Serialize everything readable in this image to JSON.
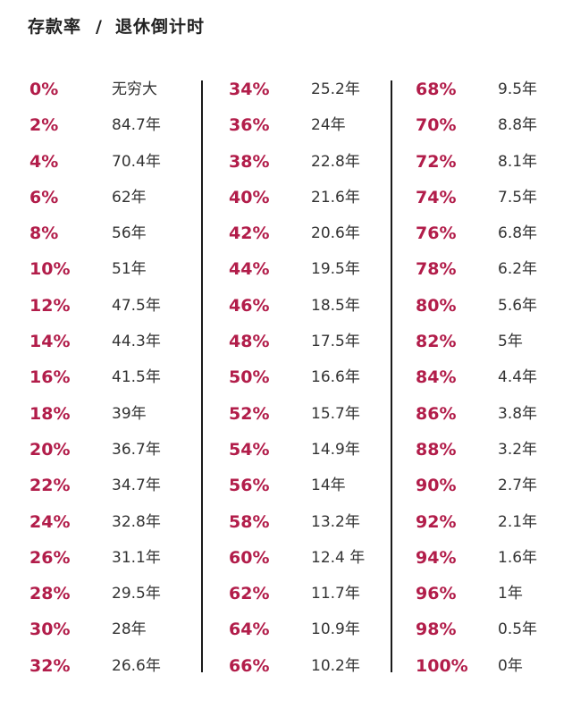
{
  "header": {
    "label_rate": "存款率",
    "separator": "/",
    "label_countdown": "退休倒计时"
  },
  "colors": {
    "rate": "#b21d4a",
    "years": "#333333",
    "title": "#222222"
  },
  "table": {
    "columns": [
      {
        "rows": [
          {
            "rate": "0%",
            "years": "无穷大"
          },
          {
            "rate": "2%",
            "years": "84.7年"
          },
          {
            "rate": "4%",
            "years": "70.4年"
          },
          {
            "rate": "6%",
            "years": "62年"
          },
          {
            "rate": "8%",
            "years": "56年"
          },
          {
            "rate": "10%",
            "years": "51年"
          },
          {
            "rate": "12%",
            "years": "47.5年"
          },
          {
            "rate": "14%",
            "years": "44.3年"
          },
          {
            "rate": "16%",
            "years": "41.5年"
          },
          {
            "rate": "18%",
            "years": "39年"
          },
          {
            "rate": "20%",
            "years": "36.7年"
          },
          {
            "rate": "22%",
            "years": "34.7年"
          },
          {
            "rate": "24%",
            "years": "32.8年"
          },
          {
            "rate": "26%",
            "years": "31.1年"
          },
          {
            "rate": "28%",
            "years": "29.5年"
          },
          {
            "rate": "30%",
            "years": "28年"
          },
          {
            "rate": "32%",
            "years": "26.6年"
          }
        ]
      },
      {
        "rows": [
          {
            "rate": "34%",
            "years": "25.2年"
          },
          {
            "rate": "36%",
            "years": "24年"
          },
          {
            "rate": "38%",
            "years": "22.8年"
          },
          {
            "rate": "40%",
            "years": "21.6年"
          },
          {
            "rate": "42%",
            "years": "20.6年"
          },
          {
            "rate": "44%",
            "years": "19.5年"
          },
          {
            "rate": "46%",
            "years": "18.5年"
          },
          {
            "rate": "48%",
            "years": "17.5年"
          },
          {
            "rate": "50%",
            "years": "16.6年"
          },
          {
            "rate": "52%",
            "years": "15.7年"
          },
          {
            "rate": "54%",
            "years": "14.9年"
          },
          {
            "rate": "56%",
            "years": "14年"
          },
          {
            "rate": "58%",
            "years": "13.2年"
          },
          {
            "rate": "60%",
            "years": "12.4 年"
          },
          {
            "rate": "62%",
            "years": "11.7年"
          },
          {
            "rate": "64%",
            "years": "10.9年"
          },
          {
            "rate": "66%",
            "years": "10.2年"
          }
        ]
      },
      {
        "rows": [
          {
            "rate": "68%",
            "years": "9.5年"
          },
          {
            "rate": "70%",
            "years": "8.8年"
          },
          {
            "rate": "72%",
            "years": "8.1年"
          },
          {
            "rate": "74%",
            "years": "7.5年"
          },
          {
            "rate": "76%",
            "years": "6.8年"
          },
          {
            "rate": "78%",
            "years": "6.2年"
          },
          {
            "rate": "80%",
            "years": "5.6年"
          },
          {
            "rate": "82%",
            "years": "5年"
          },
          {
            "rate": "84%",
            "years": "4.4年"
          },
          {
            "rate": "86%",
            "years": "3.8年"
          },
          {
            "rate": "88%",
            "years": "3.2年"
          },
          {
            "rate": "90%",
            "years": "2.7年"
          },
          {
            "rate": "92%",
            "years": "2.1年"
          },
          {
            "rate": "94%",
            "years": "1.6年"
          },
          {
            "rate": "96%",
            "years": "1年"
          },
          {
            "rate": "98%",
            "years": "0.5年"
          },
          {
            "rate": "100%",
            "years": "0年"
          }
        ]
      }
    ]
  }
}
